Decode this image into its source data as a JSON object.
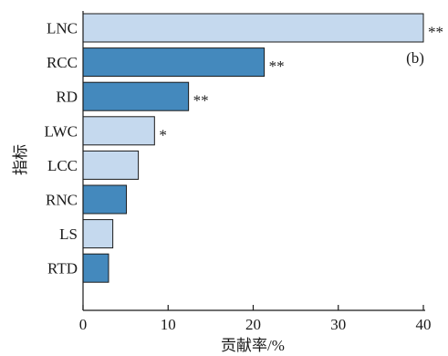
{
  "chart_data": {
    "type": "bar",
    "orientation": "horizontal",
    "title": "",
    "panel_label": "(b)",
    "xlabel": "贡献率/%",
    "ylabel": "指标",
    "xlim": [
      0,
      40
    ],
    "xticks": [
      "0",
      "10",
      "20",
      "30",
      "40"
    ],
    "grid": false,
    "categories": [
      "LNC",
      "RCC",
      "RD",
      "LWC",
      "LCC",
      "RNC",
      "LS",
      "RTD"
    ],
    "values": [
      40.0,
      21.3,
      12.4,
      8.4,
      6.5,
      5.1,
      3.5,
      3.0
    ],
    "significance": [
      "**",
      "**",
      "**",
      "*",
      "",
      "",
      "",
      ""
    ],
    "colors": [
      "#c5d9ee",
      "#4489bd",
      "#4489bd",
      "#c5d9ee",
      "#c5d9ee",
      "#4489bd",
      "#c5d9ee",
      "#4489bd"
    ],
    "edge_color": "#1a1a1a"
  }
}
